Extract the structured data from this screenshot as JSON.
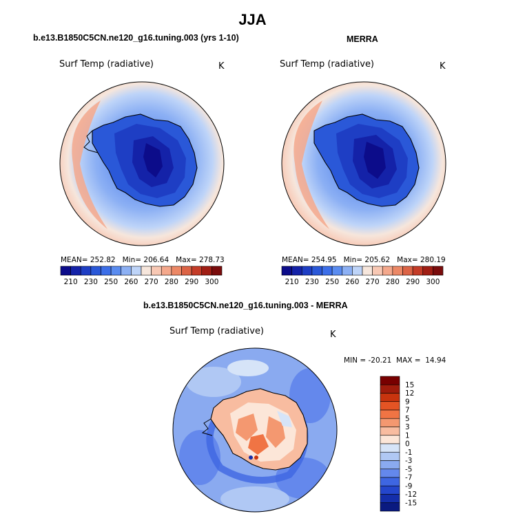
{
  "page": {
    "season_title": "JJA"
  },
  "panels": {
    "model": {
      "title": "b.e13.B1850C5CN.ne120_g16.tuning.003 (yrs 1-10)",
      "variable": "Surf Temp (radiative)",
      "units": "K",
      "stats": {
        "mean": "MEAN= 252.82",
        "min": "Min= 206.64",
        "max": "Max= 278.73"
      }
    },
    "obs": {
      "title": "MERRA",
      "variable": "Surf Temp (radiative)",
      "units": "K",
      "stats": {
        "mean": "MEAN= 254.95",
        "min": "Min= 205.62",
        "max": "Max= 280.19"
      }
    },
    "diff": {
      "title": "b.e13.B1850C5CN.ne120_g16.tuning.003 - MERRA",
      "variable": "Surf Temp (radiative)",
      "units": "K",
      "stats": "MIN = -20.21  MAX =  14.94"
    }
  },
  "colorbars": {
    "temperature": {
      "labels": [
        "210",
        "230",
        "250",
        "260",
        "270",
        "280",
        "290",
        "300"
      ],
      "colors": [
        "#0c0c8a",
        "#1422a8",
        "#1e3ec4",
        "#2a58d8",
        "#3c6ee8",
        "#5a8cf0",
        "#8cb0f4",
        "#bed4f8",
        "#f6e6dc",
        "#f8c8b4",
        "#f4a88c",
        "#ec8866",
        "#dc6446",
        "#c43c28",
        "#a01e14",
        "#7a0c0c"
      ]
    },
    "difference": {
      "labels": [
        "15",
        "12",
        "9",
        "7",
        "5",
        "3",
        "1",
        "0",
        "-1",
        "-3",
        "-5",
        "-7",
        "-9",
        "-12",
        "-15"
      ],
      "colors": [
        "#780000",
        "#a01c0c",
        "#c8340e",
        "#e45424",
        "#f07444",
        "#f49870",
        "#f8bca0",
        "#fce6d8",
        "#d6e4f8",
        "#b0c8f4",
        "#8aaaf0",
        "#6488ec",
        "#3e66e2",
        "#2446cc",
        "#142eaa",
        "#0a1a80"
      ]
    }
  }
}
